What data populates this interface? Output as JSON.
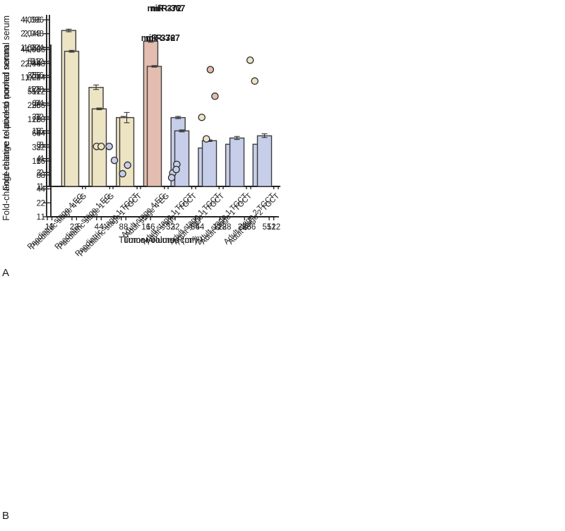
{
  "figure": {
    "panel_a": "A",
    "panel_b": "B"
  },
  "palette": {
    "cream": "#ede4c4",
    "salmon": "#e3bdb0",
    "blue": "#c6cee9",
    "outline": "#3d3d3d",
    "axis": "#1c1c1c",
    "text": "#1c1c1c"
  },
  "chart_data": [
    {
      "id": "bar-mir372",
      "type": "bar",
      "title": "miR-372",
      "ylabel": "Fold-change relative to pooled normal serum",
      "yscale": "log2",
      "ylim": [
        1,
        4096
      ],
      "y_ticks": [
        1,
        2,
        4,
        8,
        16,
        32,
        64,
        128,
        256,
        512,
        1024,
        2048,
        4096
      ],
      "y_tick_labels": [
        "1",
        "2",
        "4",
        "8",
        "16",
        "32",
        "64",
        "128",
        "256",
        "512",
        "1,024",
        "2,048",
        "4,096"
      ],
      "categories": [
        "Paediatric stage 4 EG",
        "Paediatric stage 1 EG",
        "Paediatric stage 1 TGCT",
        "Adult stage 4 EG",
        "Adult stage 1 TGCT",
        "Adult stage 1 TGCT",
        "Adult stage 1 TGCT",
        "Adult stage 2 TGCT"
      ],
      "values": [
        2400,
        140,
        31,
        1400,
        31,
        6.8,
        8.2,
        8.2
      ],
      "err_lo": [
        2250,
        126,
        29.5,
        1340,
        29.5,
        6.4,
        7.8,
        7.7
      ],
      "err_hi": [
        2560,
        158,
        33,
        1470,
        33,
        7.2,
        8.7,
        8.8
      ],
      "bar_colors": [
        "cream",
        "cream",
        "cream",
        "salmon",
        "blue",
        "blue",
        "blue",
        "blue"
      ]
    },
    {
      "id": "bar-mir367",
      "type": "bar",
      "title": "miR-367",
      "yscale": "log2",
      "ylim": [
        1,
        4096
      ],
      "y_ticks": [
        1,
        2,
        4,
        8,
        16,
        32,
        64,
        128,
        256,
        512,
        1024,
        2048,
        4096
      ],
      "y_tick_labels": [
        "1",
        "2",
        "4",
        "8",
        "16",
        "32",
        "64",
        "128",
        "256",
        "512",
        "1,024",
        "2,048",
        "4,096"
      ],
      "categories": [
        "Paediatric stage 4 EG",
        "Paediatric stage 1 EG",
        "Paediatric stage 1 TGCT",
        "Adult stage 4 EG",
        "Adult stage 1 TGCT",
        "Adult stage 1 TGCT",
        "Adult stage 1 TGCT",
        "Adult stage 2 TGCT"
      ],
      "values": [
        850,
        48,
        31,
        400,
        16,
        9.8,
        11.2,
        12.5
      ],
      "err_lo": [
        812,
        46,
        24,
        385,
        15.2,
        9.4,
        10.4,
        11.5
      ],
      "err_hi": [
        890,
        50,
        40,
        416,
        16.8,
        10.2,
        12.1,
        13.8
      ],
      "bar_colors": [
        "cream",
        "cream",
        "cream",
        "salmon",
        "blue",
        "blue",
        "blue",
        "blue"
      ]
    },
    {
      "id": "scatter-mir372",
      "type": "scatter",
      "title": "miR-372",
      "ylabel": "Fold-change relative to pooled normal serum",
      "xlabel": "Tumor volume (cm³)",
      "yscale": "log2",
      "xscale": "log2",
      "ylim": [
        1,
        4096
      ],
      "xlim": [
        1,
        512
      ],
      "y_ticks": [
        1,
        2,
        4,
        8,
        16,
        32,
        64,
        128,
        256,
        512,
        1024,
        2048,
        4096
      ],
      "y_tick_labels": [
        "1",
        "2",
        "4",
        "8",
        "16",
        "32",
        "64",
        "128",
        "256",
        "512",
        "1,024",
        "2,048",
        "4,096"
      ],
      "x_ticks": [
        1,
        2,
        4,
        8,
        16,
        32,
        64,
        128,
        256,
        512
      ],
      "x_tick_labels": [
        "1",
        "2",
        "4",
        "8",
        "16",
        "32",
        "64",
        "128",
        "256",
        "512"
      ],
      "points": [
        {
          "x": 4,
          "y": 33,
          "color": "cream"
        },
        {
          "x": 5.7,
          "y": 33,
          "color": "blue"
        },
        {
          "x": 8.3,
          "y": 8.5,
          "color": "blue"
        },
        {
          "x": 34,
          "y": 8.8,
          "color": "blue"
        },
        {
          "x": 33,
          "y": 7,
          "color": "blue"
        },
        {
          "x": 77,
          "y": 140,
          "color": "cream"
        },
        {
          "x": 98,
          "y": 1500,
          "color": "salmon"
        },
        {
          "x": 300,
          "y": 2400,
          "color": "cream"
        }
      ]
    },
    {
      "id": "scatter-mir367",
      "type": "scatter",
      "title": "miR-367",
      "xlabel": "Tumor volume (cm³)",
      "yscale": "log2",
      "xscale": "log2",
      "ylim": [
        1,
        4096
      ],
      "xlim": [
        1,
        512
      ],
      "y_ticks": [
        1,
        2,
        4,
        8,
        16,
        32,
        64,
        128,
        256,
        512,
        1024,
        2048,
        4096
      ],
      "y_tick_labels": [
        "1",
        "2",
        "4",
        "8",
        "16",
        "32",
        "64",
        "128",
        "256",
        "512",
        "1,024",
        "2,048",
        "4,096"
      ],
      "x_ticks": [
        1,
        2,
        4,
        8,
        16,
        32,
        64,
        128,
        256,
        512
      ],
      "x_tick_labels": [
        "1",
        "2",
        "4",
        "8",
        "16",
        "32",
        "64",
        "128",
        "256",
        "512"
      ],
      "points": [
        {
          "x": 4,
          "y": 33,
          "color": "cream"
        },
        {
          "x": 5.8,
          "y": 16.5,
          "color": "blue"
        },
        {
          "x": 8.4,
          "y": 13,
          "color": "blue"
        },
        {
          "x": 33.5,
          "y": 13.5,
          "color": "blue"
        },
        {
          "x": 33,
          "y": 10.5,
          "color": "blue"
        },
        {
          "x": 77,
          "y": 48,
          "color": "cream"
        },
        {
          "x": 98,
          "y": 400,
          "color": "salmon"
        },
        {
          "x": 300,
          "y": 850,
          "color": "cream"
        }
      ]
    }
  ]
}
